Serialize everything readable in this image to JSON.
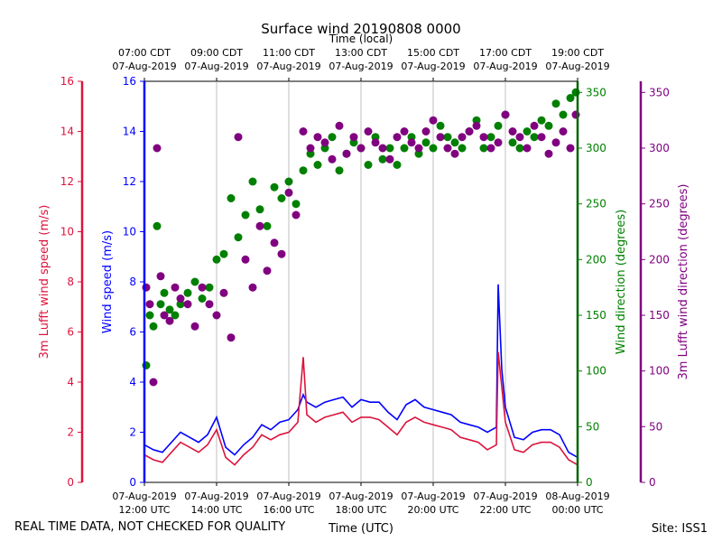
{
  "chart_data": {
    "type": "scatter",
    "title": "Surface wind 20190808 0000",
    "top_axis_label": "Time (local)",
    "x_axis_label": "Time (UTC)",
    "footer_left": "REAL TIME DATA, NOT CHECKED FOR QUALITY",
    "footer_right": "Site: ISS1",
    "xlim": [
      12,
      24
    ],
    "x_ticks": [
      {
        "value": 12,
        "utc_date": "07-Aug-2019",
        "utc_time": "12:00 UTC",
        "local_time": "07:00 CDT",
        "local_date": "07-Aug-2019"
      },
      {
        "value": 14,
        "utc_date": "07-Aug-2019",
        "utc_time": "14:00 UTC",
        "local_time": "09:00 CDT",
        "local_date": "07-Aug-2019"
      },
      {
        "value": 16,
        "utc_date": "07-Aug-2019",
        "utc_time": "16:00 UTC",
        "local_time": "11:00 CDT",
        "local_date": "07-Aug-2019"
      },
      {
        "value": 18,
        "utc_date": "07-Aug-2019",
        "utc_time": "18:00 UTC",
        "local_time": "13:00 CDT",
        "local_date": "07-Aug-2019"
      },
      {
        "value": 20,
        "utc_date": "07-Aug-2019",
        "utc_time": "20:00 UTC",
        "local_time": "15:00 CDT",
        "local_date": "07-Aug-2019"
      },
      {
        "value": 22,
        "utc_date": "07-Aug-2019",
        "utc_time": "22:00 UTC",
        "local_time": "17:00 CDT",
        "local_date": "07-Aug-2019"
      },
      {
        "value": 24,
        "utc_date": "08-Aug-2019",
        "utc_time": "00:00 UTC",
        "local_time": "19:00 CDT",
        "local_date": "07-Aug-2019"
      }
    ],
    "axes": {
      "lufft_speed": {
        "label": "3m Lufft wind speed (m/s)",
        "color": "#dc143c",
        "ylim": [
          0,
          16
        ],
        "ticks": [
          0,
          2,
          4,
          6,
          8,
          10,
          12,
          14,
          16
        ]
      },
      "wind_speed": {
        "label": "Wind speed (m/s)",
        "color": "#0000ff",
        "ylim": [
          0,
          16
        ],
        "ticks": [
          0,
          2,
          4,
          6,
          8,
          10,
          12,
          14,
          16
        ]
      },
      "wind_dir": {
        "label": "Wind direction (degrees)",
        "color": "#008000",
        "ylim": [
          0,
          360
        ],
        "ticks": [
          0,
          50,
          100,
          150,
          200,
          250,
          300,
          350
        ]
      },
      "lufft_dir": {
        "label": "3m Lufft wind direction (degrees)",
        "color": "#800080",
        "ylim": [
          0,
          360
        ],
        "ticks": [
          0,
          50,
          100,
          150,
          200,
          250,
          300,
          350
        ]
      }
    },
    "series": [
      {
        "name": "Wind speed",
        "kind": "line",
        "axis": "wind_speed",
        "color": "#0000ff",
        "x": [
          12.0,
          12.25,
          12.5,
          12.75,
          13.0,
          13.25,
          13.5,
          13.75,
          14.0,
          14.25,
          14.5,
          14.75,
          15.0,
          15.25,
          15.5,
          15.75,
          16.0,
          16.25,
          16.4,
          16.5,
          16.75,
          17.0,
          17.25,
          17.5,
          17.75,
          18.0,
          18.25,
          18.5,
          18.75,
          19.0,
          19.25,
          19.5,
          19.75,
          20.0,
          20.25,
          20.5,
          20.75,
          21.0,
          21.25,
          21.5,
          21.75,
          21.8,
          21.9,
          22.0,
          22.25,
          22.5,
          22.75,
          23.0,
          23.25,
          23.5,
          23.75,
          24.0
        ],
        "values": [
          1.5,
          1.3,
          1.2,
          1.6,
          2.0,
          1.8,
          1.6,
          1.9,
          2.6,
          1.4,
          1.1,
          1.5,
          1.8,
          2.3,
          2.1,
          2.4,
          2.5,
          2.9,
          3.5,
          3.2,
          3.0,
          3.2,
          3.3,
          3.4,
          3.0,
          3.3,
          3.2,
          3.2,
          2.8,
          2.5,
          3.1,
          3.3,
          3.0,
          2.9,
          2.8,
          2.7,
          2.4,
          2.3,
          2.2,
          2.0,
          2.2,
          7.9,
          4.5,
          3.0,
          1.8,
          1.7,
          2.0,
          2.1,
          2.1,
          1.9,
          1.2,
          1.0
        ]
      },
      {
        "name": "3m Lufft wind speed",
        "kind": "line",
        "axis": "lufft_speed",
        "color": "#dc143c",
        "x": [
          12.0,
          12.25,
          12.5,
          12.75,
          13.0,
          13.25,
          13.5,
          13.75,
          14.0,
          14.25,
          14.5,
          14.75,
          15.0,
          15.25,
          15.5,
          15.75,
          16.0,
          16.25,
          16.4,
          16.5,
          16.75,
          17.0,
          17.25,
          17.5,
          17.75,
          18.0,
          18.25,
          18.5,
          18.75,
          19.0,
          19.25,
          19.5,
          19.75,
          20.0,
          20.25,
          20.5,
          20.75,
          21.0,
          21.25,
          21.5,
          21.75,
          21.8,
          21.9,
          22.0,
          22.25,
          22.5,
          22.75,
          23.0,
          23.25,
          23.5,
          23.75,
          24.0
        ],
        "values": [
          1.1,
          0.9,
          0.8,
          1.2,
          1.6,
          1.4,
          1.2,
          1.5,
          2.1,
          1.0,
          0.7,
          1.1,
          1.4,
          1.9,
          1.7,
          1.9,
          2.0,
          2.4,
          5.0,
          2.7,
          2.4,
          2.6,
          2.7,
          2.8,
          2.4,
          2.6,
          2.6,
          2.5,
          2.2,
          1.9,
          2.4,
          2.6,
          2.4,
          2.3,
          2.2,
          2.1,
          1.8,
          1.7,
          1.6,
          1.3,
          1.5,
          5.2,
          3.8,
          2.4,
          1.3,
          1.2,
          1.5,
          1.6,
          1.6,
          1.4,
          0.9,
          0.7
        ]
      },
      {
        "name": "Wind direction",
        "kind": "scatter",
        "axis": "wind_dir",
        "color": "#008000",
        "x": [
          12.05,
          12.15,
          12.25,
          12.35,
          12.45,
          12.55,
          12.7,
          12.85,
          13.0,
          13.2,
          13.4,
          13.6,
          13.8,
          14.0,
          14.2,
          14.4,
          14.6,
          14.8,
          15.0,
          15.2,
          15.4,
          15.6,
          15.8,
          16.0,
          16.2,
          16.4,
          16.6,
          16.8,
          17.0,
          17.2,
          17.4,
          17.6,
          17.8,
          18.0,
          18.2,
          18.4,
          18.6,
          18.8,
          19.0,
          19.2,
          19.4,
          19.6,
          19.8,
          20.0,
          20.2,
          20.4,
          20.6,
          20.8,
          21.0,
          21.2,
          21.4,
          21.6,
          21.8,
          22.0,
          22.2,
          22.4,
          22.6,
          22.8,
          23.0,
          23.2,
          23.4,
          23.6,
          23.8,
          23.95
        ],
        "values": [
          105,
          150,
          140,
          230,
          160,
          170,
          155,
          150,
          160,
          170,
          180,
          165,
          175,
          200,
          205,
          255,
          220,
          240,
          270,
          245,
          230,
          265,
          255,
          270,
          250,
          280,
          295,
          285,
          300,
          310,
          280,
          295,
          305,
          300,
          285,
          310,
          290,
          300,
          285,
          300,
          310,
          295,
          305,
          300,
          320,
          310,
          305,
          300,
          315,
          325,
          300,
          310,
          320,
          330,
          305,
          300,
          315,
          310,
          325,
          320,
          340,
          330,
          345,
          350
        ]
      },
      {
        "name": "3m Lufft wind direction",
        "kind": "scatter",
        "axis": "lufft_dir",
        "color": "#800080",
        "x": [
          12.05,
          12.15,
          12.25,
          12.35,
          12.45,
          12.55,
          12.7,
          12.85,
          13.0,
          13.2,
          13.4,
          13.6,
          13.8,
          14.0,
          14.2,
          14.4,
          14.6,
          14.8,
          15.0,
          15.2,
          15.4,
          15.6,
          15.8,
          16.0,
          16.2,
          16.4,
          16.6,
          16.8,
          17.0,
          17.2,
          17.4,
          17.6,
          17.8,
          18.0,
          18.2,
          18.4,
          18.6,
          18.8,
          19.0,
          19.2,
          19.4,
          19.6,
          19.8,
          20.0,
          20.2,
          20.4,
          20.6,
          20.8,
          21.0,
          21.2,
          21.4,
          21.6,
          21.8,
          22.0,
          22.2,
          22.4,
          22.6,
          22.8,
          23.0,
          23.2,
          23.4,
          23.6,
          23.8,
          23.95
        ],
        "values": [
          175,
          160,
          90,
          300,
          185,
          150,
          145,
          175,
          165,
          160,
          140,
          175,
          160,
          150,
          170,
          130,
          310,
          200,
          175,
          230,
          190,
          215,
          205,
          260,
          240,
          315,
          300,
          310,
          305,
          290,
          320,
          295,
          310,
          300,
          315,
          305,
          300,
          290,
          310,
          315,
          305,
          300,
          315,
          325,
          310,
          300,
          295,
          310,
          315,
          320,
          310,
          300,
          305,
          330,
          315,
          310,
          300,
          320,
          310,
          295,
          305,
          315,
          300,
          330
        ]
      }
    ]
  }
}
